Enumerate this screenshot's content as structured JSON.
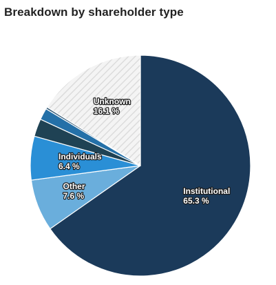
{
  "chart_data": {
    "type": "pie",
    "title": "Breakdown by shareholder type",
    "slices": [
      {
        "label": "Institutional",
        "value": 65.3,
        "value_label": "65.3 %",
        "color": "#1b3a5a",
        "show_label": true
      },
      {
        "label": "Other",
        "value": 7.6,
        "value_label": "7.6 %",
        "color": "#6aaedc",
        "show_label": true
      },
      {
        "label": "Individuals",
        "value": 6.4,
        "value_label": "6.4 %",
        "color": "#2a8fd6",
        "show_label": true
      },
      {
        "label": "",
        "value": 2.6,
        "value_label": "",
        "color": "#1f4254",
        "show_label": false
      },
      {
        "label": "",
        "value": 1.7,
        "value_label": "",
        "color": "#2470a8",
        "show_label": false
      },
      {
        "label": "",
        "value": 0.3,
        "value_label": "",
        "color": "#3a5f7a",
        "show_label": false
      },
      {
        "label": "Unknown",
        "value": 16.1,
        "value_label": "16.1 %",
        "color": "#f4f4f4",
        "pattern": "hatched",
        "show_label": true
      }
    ],
    "start": "top",
    "direction": "clockwise",
    "legend": "none"
  }
}
